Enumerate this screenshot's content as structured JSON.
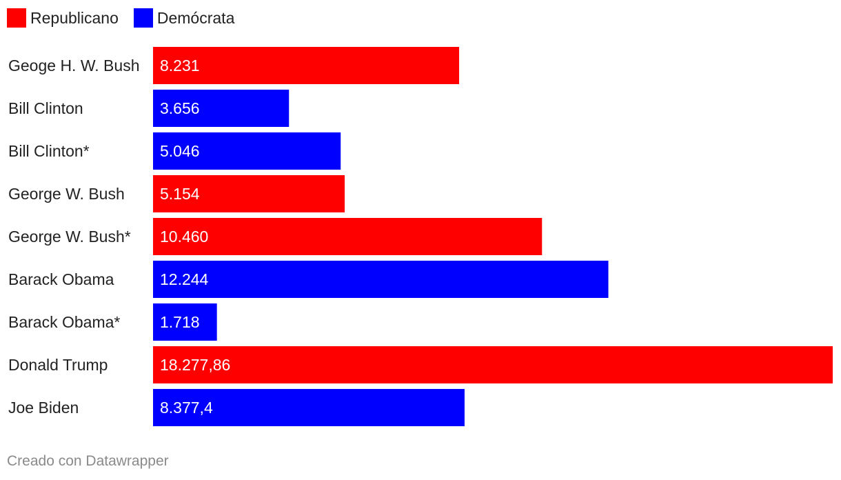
{
  "chart_data": {
    "type": "bar",
    "orientation": "horizontal",
    "legend": [
      {
        "name": "Republicano",
        "color": "#ff0000"
      },
      {
        "name": "Demócrata",
        "color": "#0000ff"
      }
    ],
    "legend_placement": "top-left",
    "categories": [
      "Geoge H. W. Bush",
      "Bill Clinton",
      "Bill Clinton*",
      "George W. Bush",
      "George W. Bush*",
      "Barack Obama",
      "Barack Obama*",
      "Donald Trump",
      "Joe Biden"
    ],
    "values": [
      8231,
      3656,
      5046,
      5154,
      10460,
      12244,
      1718,
      18277.86,
      8377.4
    ],
    "value_labels": [
      "8.231",
      "3.656",
      "5.046",
      "5.154",
      "10.460",
      "12.244",
      "1.718",
      "18.277,86",
      "8.377,4"
    ],
    "party": [
      "Republicano",
      "Demócrata",
      "Demócrata",
      "Republicano",
      "Republicano",
      "Demócrata",
      "Demócrata",
      "Republicano",
      "Demócrata"
    ],
    "xlim": [
      0,
      18277.86
    ],
    "grid": false
  },
  "footer": {
    "credit": "Creado con Datawrapper"
  }
}
